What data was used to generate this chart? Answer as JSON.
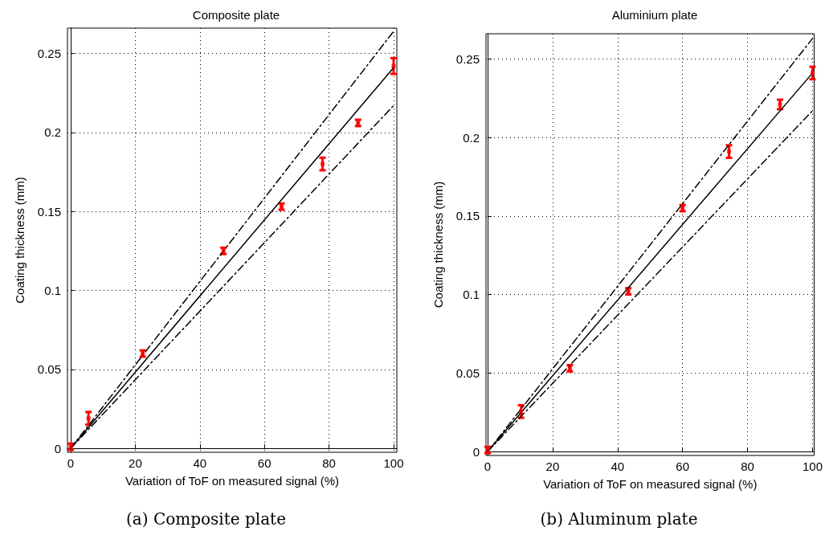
{
  "chart_data": [
    {
      "type": "scatter",
      "title": "Composite plate",
      "xlabel": "Variation of ToF on measured signal (%)",
      "ylabel": "Coating thickness (mm)",
      "xlim": [
        -1,
        101
      ],
      "ylim": [
        -0.0025,
        0.266
      ],
      "xticks": [
        0,
        20,
        40,
        60,
        80,
        100
      ],
      "yticks": [
        0,
        0.05,
        0.1,
        0.15,
        0.2,
        0.25
      ],
      "grid": true,
      "series": [
        {
          "type": "line",
          "color": "#000000",
          "line_style": "solid",
          "marker": "none",
          "x": [
            0,
            100
          ],
          "values": [
            0,
            0.241
          ]
        },
        {
          "type": "line",
          "color": "#000000",
          "line_style": "dashed",
          "marker": "none",
          "x": [
            0,
            100
          ],
          "values": [
            0,
            0.264
          ]
        },
        {
          "type": "line",
          "color": "#000000",
          "line_style": "dashed",
          "marker": "none",
          "x": [
            0,
            100
          ],
          "values": [
            0,
            0.217
          ]
        },
        {
          "type": "scatter",
          "color": "#ff0000",
          "marker": "square",
          "x": [
            0,
            5.5,
            22.3,
            47.3,
            65.3,
            78,
            89,
            100
          ],
          "values": [
            0.001,
            0.019,
            0.06,
            0.125,
            0.153,
            0.18,
            0.206,
            0.242
          ],
          "errors": [
            0.002,
            0.004,
            0.002,
            0.002,
            0.002,
            0.004,
            0.002,
            0.005
          ]
        }
      ],
      "annotations": [
        "(a) Composite plate"
      ]
    },
    {
      "type": "scatter",
      "title": "Aluminium plate",
      "xlabel": "Variation of ToF on measured signal (%)",
      "ylabel": "Coating thickness (mm)",
      "xlim": [
        -0.5,
        100.5
      ],
      "ylim": [
        -0.0025,
        0.266
      ],
      "xticks": [
        0,
        20,
        40,
        60,
        80,
        100
      ],
      "yticks": [
        0,
        0.05,
        0.1,
        0.15,
        0.2,
        0.25
      ],
      "grid": true,
      "series": [
        {
          "type": "line",
          "color": "#000000",
          "line_style": "solid",
          "marker": "none",
          "x": [
            0,
            100
          ],
          "values": [
            0,
            0.241
          ]
        },
        {
          "type": "line",
          "color": "#000000",
          "line_style": "dashed",
          "marker": "none",
          "x": [
            0,
            100
          ],
          "values": [
            0,
            0.263
          ]
        },
        {
          "type": "line",
          "color": "#000000",
          "line_style": "dashed",
          "marker": "none",
          "x": [
            0,
            100
          ],
          "values": [
            0,
            0.217
          ]
        },
        {
          "type": "scatter",
          "color": "#ff0000",
          "marker": "square",
          "x": [
            0,
            10.3,
            25.3,
            43.3,
            60,
            74.3,
            90,
            100
          ],
          "values": [
            0.001,
            0.0255,
            0.053,
            0.102,
            0.155,
            0.191,
            0.221,
            0.241
          ],
          "errors": [
            0.002,
            0.004,
            0.002,
            0.002,
            0.002,
            0.004,
            0.003,
            0.004
          ]
        }
      ],
      "annotations": [
        "(b) Aluminum plate"
      ]
    }
  ]
}
